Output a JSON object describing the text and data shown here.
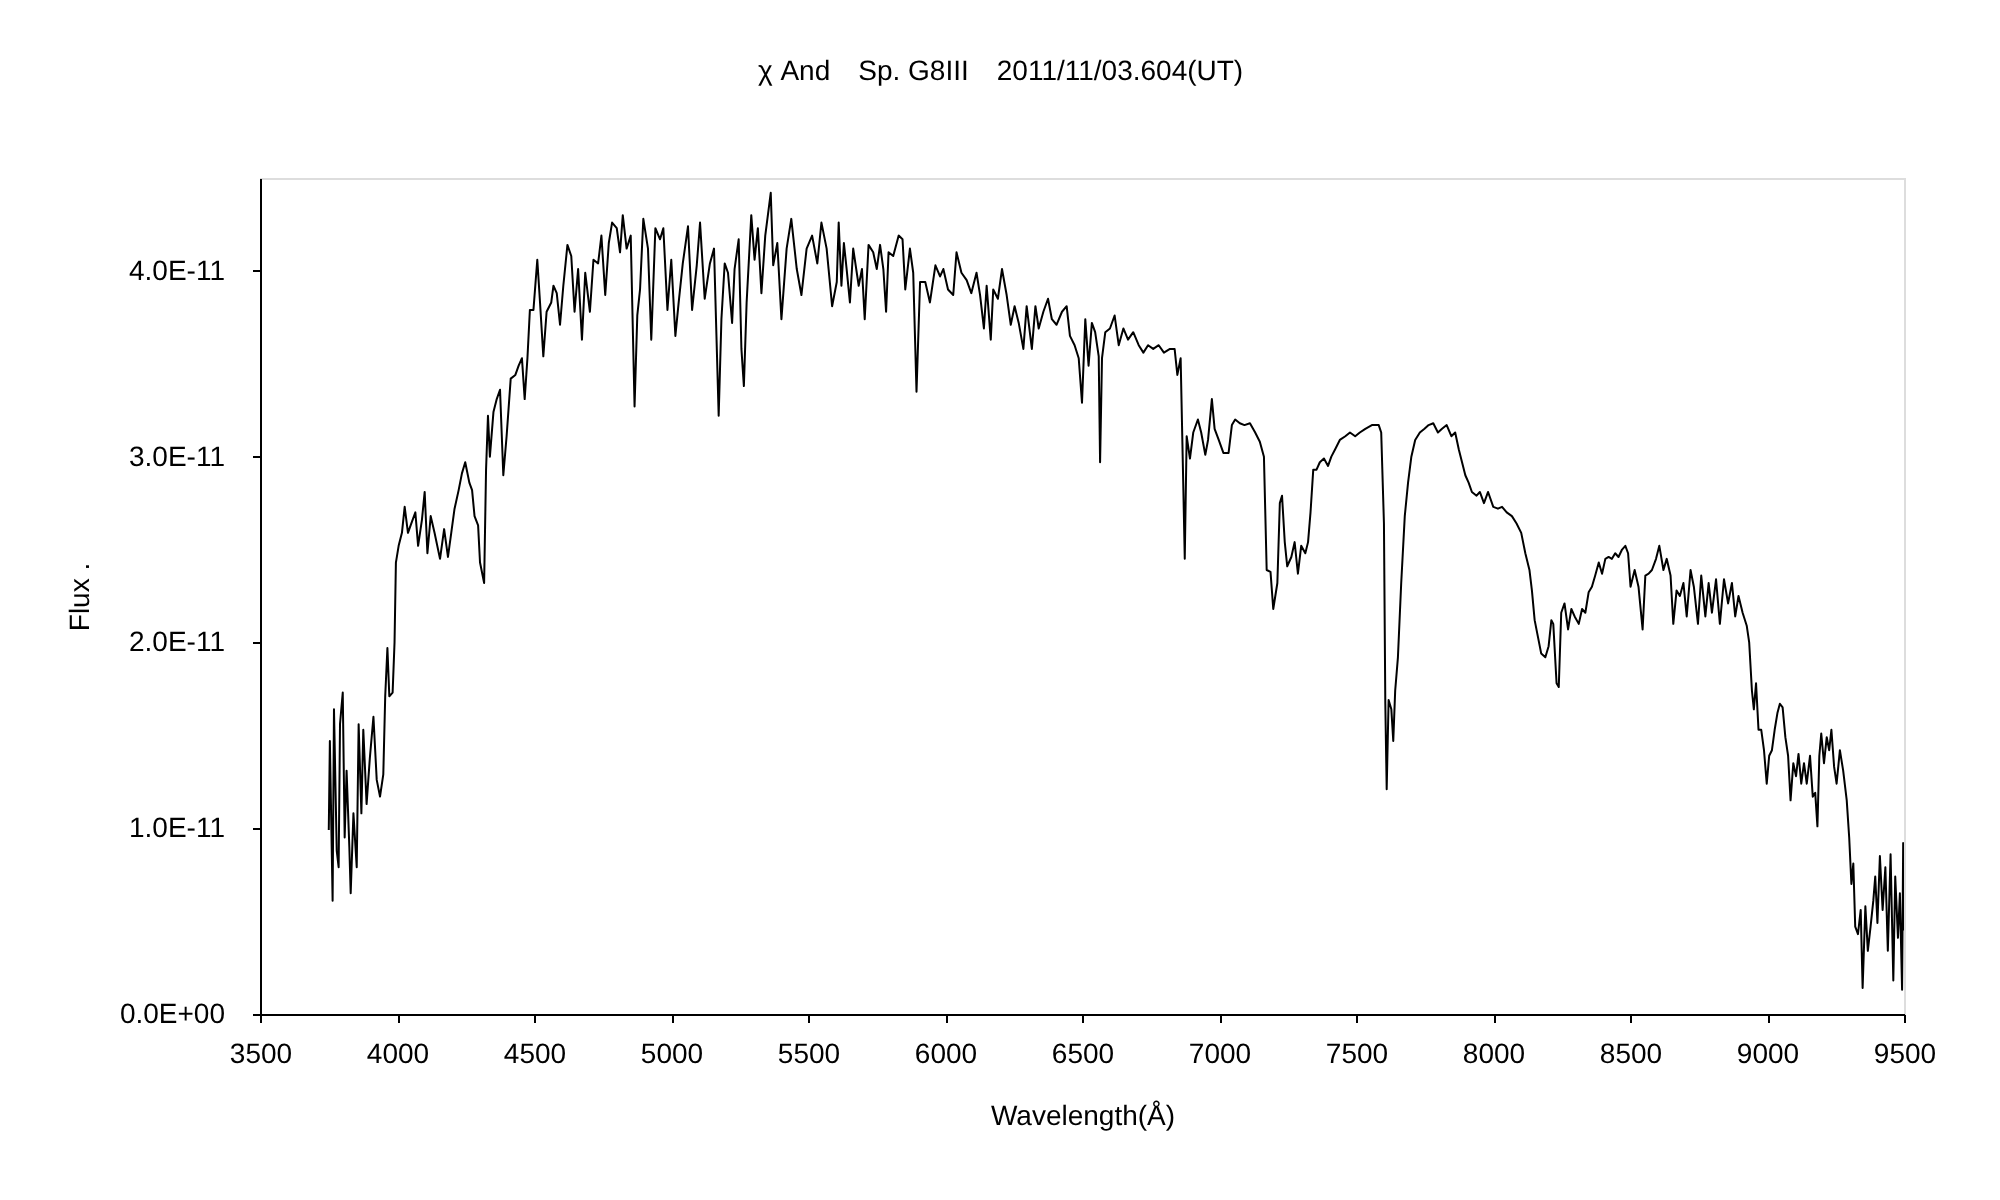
{
  "chart_data": {
    "type": "line",
    "title": "χ And　Sp. G8III　2011/11/03.604(UT)",
    "xlabel": "Wavelength(Å)",
    "ylabel": "Flux .",
    "xlim": [
      3500,
      9500
    ],
    "xticks": [
      3500,
      4000,
      4500,
      5000,
      5500,
      6000,
      6500,
      7000,
      7500,
      8000,
      8500,
      9000,
      9500
    ],
    "ylim": [
      0,
      4.5e-11
    ],
    "yticks": [
      {
        "value": 0,
        "label": "0.0E+00"
      },
      {
        "value": 1e-11,
        "label": "1.0E-11"
      },
      {
        "value": 2e-11,
        "label": "2.0E-11"
      },
      {
        "value": 3e-11,
        "label": "3.0E-11"
      },
      {
        "value": 4e-11,
        "label": "4.0E-11"
      }
    ],
    "grid": false,
    "marker": "none",
    "line_style": "solid",
    "series": [
      {
        "color": "#000000",
        "x": [
          3751,
          3755,
          3765,
          3770,
          3780,
          3787,
          3792,
          3802,
          3809,
          3816,
          3826,
          3831,
          3841,
          3853,
          3860,
          3870,
          3877,
          3889,
          3901,
          3914,
          3926,
          3938,
          3950,
          3957,
          3965,
          3972,
          3984,
          3991,
          3996,
          4006,
          4018,
          4028,
          4040,
          4052,
          4067,
          4077,
          4091,
          4101,
          4111,
          4123,
          4137,
          4157,
          4172,
          4186,
          4198,
          4210,
          4225,
          4237,
          4249,
          4264,
          4274,
          4283,
          4296,
          4303,
          4318,
          4325,
          4332,
          4339,
          4352,
          4364,
          4376,
          4388,
          4400,
          4415,
          4432,
          4444,
          4456,
          4466,
          4476,
          4485,
          4498,
          4512,
          4522,
          4534,
          4546,
          4563,
          4571,
          4583,
          4595,
          4607,
          4622,
          4636,
          4648,
          4661,
          4675,
          4687,
          4704,
          4717,
          4734,
          4746,
          4760,
          4773,
          4785,
          4802,
          4814,
          4824,
          4838,
          4853,
          4867,
          4877,
          4887,
          4899,
          4916,
          4928,
          4943,
          4960,
          4972,
          4987,
          5001,
          5016,
          5028,
          5043,
          5062,
          5077,
          5094,
          5106,
          5123,
          5142,
          5157,
          5174,
          5184,
          5196,
          5208,
          5223,
          5232,
          5247,
          5257,
          5266,
          5276,
          5293,
          5305,
          5317,
          5330,
          5344,
          5364,
          5373,
          5388,
          5403,
          5422,
          5439,
          5459,
          5476,
          5495,
          5515,
          5534,
          5549,
          5568,
          5588,
          5605,
          5612,
          5622,
          5631,
          5641,
          5653,
          5665,
          5685,
          5697,
          5707,
          5721,
          5738,
          5751,
          5763,
          5775,
          5785,
          5794,
          5811,
          5831,
          5845,
          5855,
          5872,
          5884,
          5896,
          5909,
          5928,
          5945,
          5965,
          5982,
          5994,
          6011,
          6030,
          6042,
          6060,
          6079,
          6096,
          6115,
          6128,
          6142,
          6152,
          6167,
          6176,
          6193,
          6208,
          6225,
          6240,
          6254,
          6269,
          6286,
          6298,
          6317,
          6330,
          6342,
          6359,
          6376,
          6390,
          6407,
          6427,
          6444,
          6456,
          6473,
          6488,
          6500,
          6512,
          6524,
          6536,
          6548,
          6561,
          6566,
          6573,
          6585,
          6602,
          6619,
          6634,
          6651,
          6668,
          6687,
          6707,
          6724,
          6741,
          6760,
          6780,
          6799,
          6821,
          6838,
          6848,
          6860,
          6870,
          6875,
          6882,
          6894,
          6906,
          6923,
          6935,
          6950,
          6960,
          6974,
          6984,
          6999,
          7016,
          7035,
          7047,
          7059,
          7076,
          7093,
          7113,
          7132,
          7149,
          7164,
          7174,
          7188,
          7198,
          7213,
          7222,
          7230,
          7240,
          7249,
          7264,
          7276,
          7288,
          7300,
          7315,
          7325,
          7334,
          7344,
          7356,
          7368,
          7383,
          7398,
          7410,
          7424,
          7441,
          7461,
          7478,
          7497,
          7514,
          7534,
          7558,
          7583,
          7592,
          7602,
          7607,
          7612,
          7619,
          7629,
          7636,
          7643,
          7653,
          7665,
          7678,
          7690,
          7702,
          7716,
          7733,
          7750,
          7765,
          7782,
          7799,
          7814,
          7831,
          7848,
          7862,
          7875,
          7887,
          7899,
          7911,
          7923,
          7940,
          7952,
          7967,
          7982,
          8001,
          8018,
          8033,
          8050,
          8069,
          8086,
          8103,
          8118,
          8133,
          8142,
          8152,
          8164,
          8176,
          8191,
          8203,
          8213,
          8220,
          8232,
          8240,
          8249,
          8261,
          8274,
          8286,
          8298,
          8313,
          8325,
          8337,
          8349,
          8361,
          8373,
          8386,
          8398,
          8410,
          8422,
          8434,
          8446,
          8458,
          8471,
          8483,
          8493,
          8502,
          8517,
          8531,
          8546,
          8556,
          8568,
          8580,
          8595,
          8607,
          8622,
          8634,
          8648,
          8658,
          8670,
          8682,
          8695,
          8707,
          8721,
          8733,
          8748,
          8760,
          8775,
          8787,
          8799,
          8814,
          8828,
          8843,
          8858,
          8872,
          8884,
          8896,
          8911,
          8926,
          8935,
          8945,
          8952,
          8960,
          8969,
          8979,
          8989,
          8999,
          9008,
          9018,
          9028,
          9038,
          9047,
          9057,
          9067,
          9077,
          9086,
          9096,
          9106,
          9115,
          9125,
          9135,
          9145,
          9157,
          9167,
          9176,
          9184,
          9191,
          9198,
          9208,
          9218,
          9227,
          9235,
          9245,
          9254,
          9266,
          9278,
          9291,
          9300,
          9308,
          9315,
          9322,
          9332,
          9342,
          9349,
          9359,
          9368,
          9378,
          9388,
          9395,
          9403,
          9412,
          9422,
          9432,
          9441,
          9451,
          9461,
          9468,
          9478,
          9485,
          9493,
          9497,
          9500
        ],
        "values": [
          9.9e-12,
          1.47e-11,
          6.1e-12,
          1.64e-11,
          8.8e-12,
          7.9e-12,
          1.56e-11,
          1.73e-11,
          9.5e-12,
          1.31e-11,
          9e-12,
          6.5e-12,
          1.08e-11,
          7.9e-12,
          1.56e-11,
          1.08e-11,
          1.53e-11,
          1.13e-11,
          1.38e-11,
          1.6e-11,
          1.26e-11,
          1.17e-11,
          1.29e-11,
          1.71e-11,
          1.97e-11,
          1.71e-11,
          1.73e-11,
          2e-11,
          2.43e-11,
          2.52e-11,
          2.59e-11,
          2.73e-11,
          2.59e-11,
          2.64e-11,
          2.7e-11,
          2.52e-11,
          2.66e-11,
          2.81e-11,
          2.48e-11,
          2.68e-11,
          2.59e-11,
          2.45e-11,
          2.61e-11,
          2.46e-11,
          2.59e-11,
          2.72e-11,
          2.82e-11,
          2.91e-11,
          2.97e-11,
          2.86e-11,
          2.82e-11,
          2.68e-11,
          2.63e-11,
          2.43e-11,
          2.32e-11,
          2.93e-11,
          3.22e-11,
          3e-11,
          3.24e-11,
          3.31e-11,
          3.36e-11,
          2.9e-11,
          3.11e-11,
          3.42e-11,
          3.44e-11,
          3.49e-11,
          3.53e-11,
          3.31e-11,
          3.53e-11,
          3.79e-11,
          3.79e-11,
          4.06e-11,
          3.83e-11,
          3.54e-11,
          3.78e-11,
          3.83e-11,
          3.92e-11,
          3.88e-11,
          3.71e-11,
          3.92e-11,
          4.14e-11,
          4.08e-11,
          3.78e-11,
          4.01e-11,
          3.63e-11,
          3.99e-11,
          3.78e-11,
          4.06e-11,
          4.04e-11,
          4.19e-11,
          3.87e-11,
          4.15e-11,
          4.26e-11,
          4.23e-11,
          4.1e-11,
          4.3e-11,
          4.12e-11,
          4.19e-11,
          3.27e-11,
          3.76e-11,
          3.9e-11,
          4.28e-11,
          4.12e-11,
          3.63e-11,
          4.23e-11,
          4.17e-11,
          4.23e-11,
          3.79e-11,
          4.06e-11,
          3.65e-11,
          3.83e-11,
          4.04e-11,
          4.24e-11,
          3.79e-11,
          4.03e-11,
          4.26e-11,
          3.85e-11,
          4.04e-11,
          4.12e-11,
          3.22e-11,
          3.74e-11,
          4.04e-11,
          3.99e-11,
          3.72e-11,
          4.01e-11,
          4.17e-11,
          3.58e-11,
          3.38e-11,
          3.83e-11,
          4.3e-11,
          4.06e-11,
          4.23e-11,
          3.88e-11,
          4.19e-11,
          4.42e-11,
          4.03e-11,
          4.15e-11,
          3.74e-11,
          4.12e-11,
          4.28e-11,
          4.01e-11,
          3.87e-11,
          4.12e-11,
          4.19e-11,
          4.04e-11,
          4.26e-11,
          4.12e-11,
          3.81e-11,
          3.94e-11,
          4.26e-11,
          3.92e-11,
          4.15e-11,
          4.01e-11,
          3.83e-11,
          4.12e-11,
          3.92e-11,
          4.01e-11,
          3.74e-11,
          4.14e-11,
          4.1e-11,
          4.01e-11,
          4.14e-11,
          4.01e-11,
          3.78e-11,
          4.1e-11,
          4.08e-11,
          4.19e-11,
          4.17e-11,
          3.9e-11,
          4.12e-11,
          3.99e-11,
          3.35e-11,
          3.94e-11,
          3.94e-11,
          3.83e-11,
          4.03e-11,
          3.97e-11,
          4.01e-11,
          3.9e-11,
          3.87e-11,
          4.1e-11,
          3.99e-11,
          3.95e-11,
          3.88e-11,
          3.99e-11,
          3.87e-11,
          3.69e-11,
          3.92e-11,
          3.63e-11,
          3.9e-11,
          3.85e-11,
          4.01e-11,
          3.87e-11,
          3.71e-11,
          3.81e-11,
          3.72e-11,
          3.58e-11,
          3.81e-11,
          3.58e-11,
          3.81e-11,
          3.69e-11,
          3.78e-11,
          3.85e-11,
          3.74e-11,
          3.71e-11,
          3.78e-11,
          3.81e-11,
          3.65e-11,
          3.6e-11,
          3.53e-11,
          3.29e-11,
          3.74e-11,
          3.49e-11,
          3.72e-11,
          3.67e-11,
          3.54e-11,
          2.97e-11,
          3.53e-11,
          3.67e-11,
          3.69e-11,
          3.76e-11,
          3.6e-11,
          3.69e-11,
          3.63e-11,
          3.67e-11,
          3.6e-11,
          3.56e-11,
          3.6e-11,
          3.58e-11,
          3.6e-11,
          3.56e-11,
          3.58e-11,
          3.58e-11,
          3.44e-11,
          3.53e-11,
          2.82e-11,
          2.45e-11,
          3.11e-11,
          2.99e-11,
          3.13e-11,
          3.2e-11,
          3.13e-11,
          3.01e-11,
          3.09e-11,
          3.31e-11,
          3.15e-11,
          3.09e-11,
          3.02e-11,
          3.02e-11,
          3.17e-11,
          3.2e-11,
          3.18e-11,
          3.17e-11,
          3.18e-11,
          3.13e-11,
          3.08e-11,
          3e-11,
          2.39e-11,
          2.38e-11,
          2.18e-11,
          2.32e-11,
          2.75e-11,
          2.79e-11,
          2.54e-11,
          2.41e-11,
          2.46e-11,
          2.54e-11,
          2.37e-11,
          2.52e-11,
          2.48e-11,
          2.54e-11,
          2.7e-11,
          2.93e-11,
          2.93e-11,
          2.97e-11,
          2.99e-11,
          2.95e-11,
          3e-11,
          3.04e-11,
          3.09e-11,
          3.11e-11,
          3.13e-11,
          3.11e-11,
          3.13e-11,
          3.15e-11,
          3.17e-11,
          3.17e-11,
          3.13e-11,
          2.64e-11,
          1.67e-11,
          1.21e-11,
          1.69e-11,
          1.64e-11,
          1.47e-11,
          1.74e-11,
          1.92e-11,
          2.32e-11,
          2.68e-11,
          2.86e-11,
          3e-11,
          3.09e-11,
          3.13e-11,
          3.15e-11,
          3.17e-11,
          3.18e-11,
          3.13e-11,
          3.15e-11,
          3.17e-11,
          3.11e-11,
          3.13e-11,
          3.04e-11,
          2.97e-11,
          2.9e-11,
          2.86e-11,
          2.81e-11,
          2.79e-11,
          2.81e-11,
          2.75e-11,
          2.81e-11,
          2.73e-11,
          2.72e-11,
          2.73e-11,
          2.7e-11,
          2.68e-11,
          2.64e-11,
          2.59e-11,
          2.48e-11,
          2.39e-11,
          2.28e-11,
          2.12e-11,
          2.03e-11,
          1.94e-11,
          1.92e-11,
          1.98e-11,
          2.12e-11,
          2.1e-11,
          1.78e-11,
          1.76e-11,
          2.16e-11,
          2.21e-11,
          2.07e-11,
          2.18e-11,
          2.14e-11,
          2.1e-11,
          2.18e-11,
          2.16e-11,
          2.27e-11,
          2.3e-11,
          2.36e-11,
          2.43e-11,
          2.37e-11,
          2.45e-11,
          2.46e-11,
          2.45e-11,
          2.48e-11,
          2.46e-11,
          2.5e-11,
          2.52e-11,
          2.48e-11,
          2.3e-11,
          2.39e-11,
          2.3e-11,
          2.07e-11,
          2.36e-11,
          2.37e-11,
          2.39e-11,
          2.45e-11,
          2.52e-11,
          2.39e-11,
          2.45e-11,
          2.36e-11,
          2.1e-11,
          2.28e-11,
          2.25e-11,
          2.32e-11,
          2.14e-11,
          2.39e-11,
          2.3e-11,
          2.1e-11,
          2.36e-11,
          2.14e-11,
          2.32e-11,
          2.16e-11,
          2.34e-11,
          2.1e-11,
          2.34e-11,
          2.21e-11,
          2.32e-11,
          2.14e-11,
          2.25e-11,
          2.16e-11,
          2.09e-11,
          2e-11,
          1.74e-11,
          1.64e-11,
          1.78e-11,
          1.53e-11,
          1.53e-11,
          1.42e-11,
          1.24e-11,
          1.39e-11,
          1.42e-11,
          1.53e-11,
          1.62e-11,
          1.67e-11,
          1.65e-11,
          1.49e-11,
          1.39e-11,
          1.15e-11,
          1.35e-11,
          1.28e-11,
          1.4e-11,
          1.24e-11,
          1.35e-11,
          1.24e-11,
          1.39e-11,
          1.17e-11,
          1.19e-11,
          1.01e-11,
          1.39e-11,
          1.51e-11,
          1.35e-11,
          1.49e-11,
          1.42e-11,
          1.53e-11,
          1.33e-11,
          1.24e-11,
          1.42e-11,
          1.31e-11,
          1.15e-11,
          9.5e-12,
          7e-12,
          8.1e-12,
          4.7e-12,
          4.3e-12,
          5.6e-12,
          1.4e-12,
          5.8e-12,
          3.4e-12,
          4.7e-12,
          6.1e-12,
          7.4e-12,
          4.9e-12,
          8.5e-12,
          5.6e-12,
          7.9e-12,
          3.4e-12,
          8.6e-12,
          1.8e-12,
          7.4e-12,
          4.1e-12,
          6.5e-12,
          1.3e-12,
          9.2e-12,
          4.5e-12
        ]
      }
    ]
  }
}
